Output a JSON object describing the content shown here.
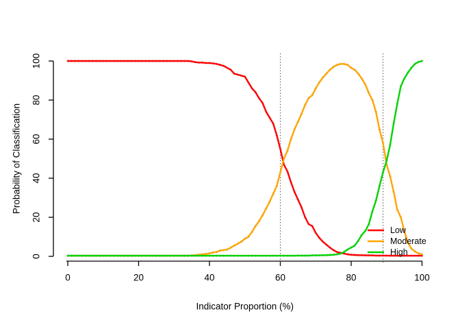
{
  "figure": {
    "background": "#ffffff",
    "text_color": "#000000",
    "axis_color": "#000000"
  },
  "chart_data": {
    "type": "line",
    "title": "",
    "xlabel": "Indicator Proportion (%)",
    "ylabel": "Probability of Classification",
    "xlim": [
      0,
      100
    ],
    "ylim": [
      0,
      100
    ],
    "x_ticks": [
      0,
      20,
      40,
      60,
      80,
      100
    ],
    "y_ticks": [
      0,
      20,
      40,
      60,
      80,
      100
    ],
    "grid": false,
    "x_step": 1,
    "marker": {
      "shape": "diamond",
      "color": "#c8c8c8",
      "size": 2.2
    },
    "reference_lines": {
      "x": [
        60,
        89
      ],
      "style": "dotted",
      "color": "#454545"
    },
    "legend": {
      "position": "bottom-right",
      "box": false,
      "entries": [
        {
          "label": "Low",
          "color": "#ff0000"
        },
        {
          "label": "Moderate",
          "color": "#ffa500"
        },
        {
          "label": "High",
          "color": "#00d300"
        }
      ]
    },
    "series": [
      {
        "name": "Low",
        "color": "#ff0000",
        "values": [
          100,
          100,
          100,
          100,
          100,
          100,
          100,
          100,
          100,
          100,
          100,
          100,
          100,
          100,
          100,
          100,
          100,
          100,
          100,
          100,
          100,
          100,
          100,
          100,
          100,
          100,
          100,
          100,
          100,
          100,
          100,
          100,
          100,
          100,
          100,
          99.8,
          99.4,
          99.2,
          99.2,
          99,
          99,
          98.8,
          98.5,
          98,
          97.5,
          96.5,
          95.5,
          93.5,
          93,
          92.5,
          92,
          89,
          86,
          84,
          81,
          78.5,
          74,
          71,
          68,
          62,
          55,
          47,
          43.5,
          38,
          33,
          29,
          25,
          20,
          16.5,
          15.5,
          12,
          9.5,
          7.5,
          6,
          4.5,
          3.2,
          2.2,
          1.8,
          1.4,
          1,
          0.8,
          0.7,
          0.6,
          0.6,
          0.5,
          0.5,
          0.5,
          0.4,
          0.4,
          0.4,
          0.4,
          0.3,
          0.3,
          0.3,
          0.3,
          0.3,
          0.3,
          0.3,
          0.3,
          0.3,
          0.3
        ]
      },
      {
        "name": "Moderate",
        "color": "#ffa500",
        "values": [
          0.3,
          0.3,
          0.3,
          0.3,
          0.3,
          0.3,
          0.3,
          0.3,
          0.3,
          0.3,
          0.3,
          0.3,
          0.3,
          0.3,
          0.3,
          0.3,
          0.3,
          0.3,
          0.3,
          0.3,
          0.3,
          0.3,
          0.3,
          0.3,
          0.3,
          0.3,
          0.3,
          0.3,
          0.3,
          0.3,
          0.3,
          0.3,
          0.3,
          0.3,
          0.3,
          0.5,
          0.6,
          0.8,
          1,
          1.2,
          1.5,
          2,
          2.2,
          3,
          3.2,
          3.5,
          4.5,
          5.5,
          6.5,
          7.5,
          9,
          10,
          12.5,
          15.5,
          18,
          21,
          24.5,
          28,
          32,
          36,
          43,
          50,
          54,
          60,
          65,
          69,
          73,
          77.5,
          81,
          82.5,
          86,
          89,
          91.5,
          93.5,
          95.5,
          97,
          98,
          98.5,
          98.5,
          98,
          96.5,
          95.5,
          93.5,
          91,
          88,
          83.5,
          80,
          74,
          65,
          58,
          47,
          41,
          33,
          24,
          20,
          13,
          7,
          4,
          2.5,
          1.5,
          1
        ]
      },
      {
        "name": "High",
        "color": "#00d300",
        "values": [
          0.3,
          0.3,
          0.3,
          0.3,
          0.3,
          0.3,
          0.3,
          0.3,
          0.3,
          0.3,
          0.3,
          0.3,
          0.3,
          0.3,
          0.3,
          0.3,
          0.3,
          0.3,
          0.3,
          0.3,
          0.3,
          0.3,
          0.3,
          0.3,
          0.3,
          0.3,
          0.3,
          0.3,
          0.3,
          0.3,
          0.3,
          0.3,
          0.3,
          0.3,
          0.3,
          0.3,
          0.3,
          0.3,
          0.3,
          0.3,
          0.3,
          0.3,
          0.3,
          0.3,
          0.3,
          0.3,
          0.3,
          0.3,
          0.3,
          0.3,
          0.3,
          0.3,
          0.3,
          0.3,
          0.3,
          0.3,
          0.3,
          0.3,
          0.3,
          0.3,
          0.3,
          0.3,
          0.3,
          0.3,
          0.3,
          0.4,
          0.4,
          0.4,
          0.4,
          0.5,
          0.5,
          0.5,
          0.6,
          0.6,
          0.7,
          0.8,
          1,
          1.4,
          2.2,
          3.5,
          4.5,
          5.5,
          8,
          11,
          13,
          16.5,
          23,
          28.5,
          36,
          43,
          49,
          57,
          68,
          78,
          87,
          91,
          94,
          96.5,
          98.5,
          99.5,
          100
        ]
      }
    ]
  }
}
